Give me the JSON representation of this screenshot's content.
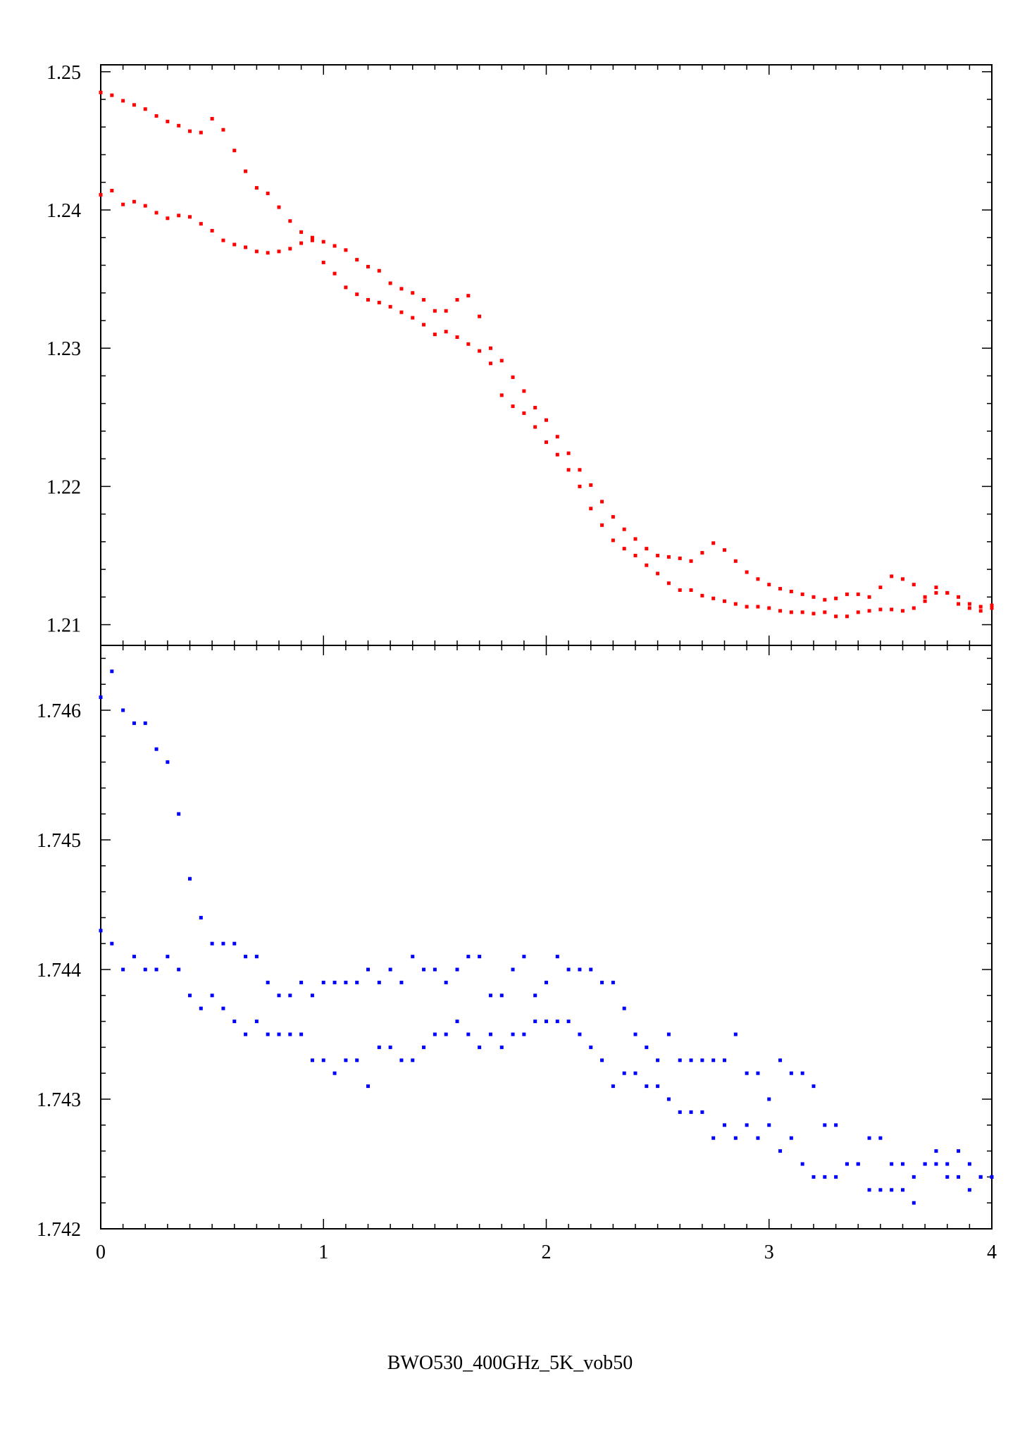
{
  "caption": "BWO530_400GHz_5K_vob50",
  "colors": {
    "top_series": "#ff0000",
    "bottom_series": "#0000ff",
    "axes": "#000000",
    "background": "#ffffff"
  },
  "chart_data": [
    {
      "type": "scatter",
      "title": "",
      "xlabel": "",
      "ylabel": "",
      "xlim": [
        0,
        4
      ],
      "ylim": [
        1.2085,
        1.2505
      ],
      "grid": false,
      "x_ticks": [
        {
          "value": 0,
          "label": "0"
        },
        {
          "value": 1,
          "label": "1"
        },
        {
          "value": 2,
          "label": "2"
        },
        {
          "value": 3,
          "label": "3"
        },
        {
          "value": 4,
          "label": "4"
        }
      ],
      "y_ticks": [
        {
          "value": 1.21,
          "label": "1.21"
        },
        {
          "value": 1.22,
          "label": "1.22"
        },
        {
          "value": 1.23,
          "label": "1.23"
        },
        {
          "value": 1.24,
          "label": "1.24"
        },
        {
          "value": 1.25,
          "label": "1.25"
        }
      ],
      "series": [
        {
          "color": "#ff0000",
          "x": [
            0,
            0.05,
            0.1,
            0.15,
            0.2,
            0.25,
            0.3,
            0.35,
            0.4,
            0.45,
            0.5,
            0.55,
            0.6,
            0.65,
            0.7,
            0.75,
            0.8,
            0.85,
            0.9,
            0.95,
            1.0,
            1.05,
            1.1,
            1.15,
            1.2,
            1.25,
            1.3,
            1.35,
            1.4,
            1.45,
            1.5,
            1.55,
            1.6,
            1.65,
            1.7,
            1.75,
            1.8,
            1.85,
            1.9,
            1.95,
            2.0,
            2.05,
            2.1,
            2.15,
            2.2,
            2.25,
            2.3,
            2.35,
            2.4,
            2.45,
            2.5,
            2.55,
            2.6,
            2.65,
            2.7,
            2.75,
            2.8,
            2.85,
            2.9,
            2.95,
            3.0,
            3.05,
            3.1,
            3.15,
            3.2,
            3.25,
            3.3,
            3.35,
            3.4,
            3.45,
            3.5,
            3.55,
            3.6,
            3.65,
            3.7,
            3.75,
            3.8,
            3.85,
            3.9,
            3.95,
            4.0
          ],
          "y": [
            1.2485,
            1.2483,
            1.2479,
            1.2476,
            1.2473,
            1.2468,
            1.2464,
            1.2461,
            1.2457,
            1.2456,
            1.2466,
            1.2458,
            1.2443,
            1.2428,
            1.2416,
            1.2412,
            1.2402,
            1.2392,
            1.2384,
            1.238,
            1.2377,
            1.2374,
            1.2371,
            1.2364,
            1.2359,
            1.2356,
            1.2347,
            1.2343,
            1.234,
            1.2335,
            1.2327,
            1.2327,
            1.2335,
            1.2338,
            1.2323,
            1.23,
            1.2291,
            1.2279,
            1.2269,
            1.2257,
            1.2248,
            1.2236,
            1.2224,
            1.2212,
            1.2201,
            1.2189,
            1.2178,
            1.2169,
            1.2162,
            1.2155,
            1.215,
            1.2149,
            1.2148,
            1.2146,
            1.2152,
            1.2159,
            1.2154,
            1.2146,
            1.2138,
            1.2133,
            1.2129,
            1.2126,
            1.2124,
            1.2122,
            1.212,
            1.2118,
            1.2119,
            1.2122,
            1.2122,
            1.212,
            1.2127,
            1.2135,
            1.2133,
            1.2129,
            1.212,
            1.2127,
            1.2123,
            1.2115,
            1.2115,
            1.2113,
            1.2114
          ]
        },
        {
          "color": "#ff0000",
          "x": [
            0,
            0.05,
            0.1,
            0.15,
            0.2,
            0.25,
            0.3,
            0.35,
            0.4,
            0.45,
            0.5,
            0.55,
            0.6,
            0.65,
            0.7,
            0.75,
            0.8,
            0.85,
            0.9,
            0.95,
            1.0,
            1.05,
            1.1,
            1.15,
            1.2,
            1.25,
            1.3,
            1.35,
            1.4,
            1.45,
            1.5,
            1.55,
            1.6,
            1.65,
            1.7,
            1.75,
            1.8,
            1.85,
            1.9,
            1.95,
            2.0,
            2.05,
            2.1,
            2.15,
            2.2,
            2.25,
            2.3,
            2.35,
            2.4,
            2.45,
            2.5,
            2.55,
            2.6,
            2.65,
            2.7,
            2.75,
            2.8,
            2.85,
            2.9,
            2.95,
            3.0,
            3.05,
            3.1,
            3.15,
            3.2,
            3.25,
            3.3,
            3.35,
            3.4,
            3.45,
            3.5,
            3.55,
            3.6,
            3.65,
            3.7,
            3.75,
            3.8,
            3.85,
            3.9,
            3.95,
            4.0
          ],
          "y": [
            1.2411,
            1.2414,
            1.2404,
            1.2406,
            1.2403,
            1.2398,
            1.2394,
            1.2396,
            1.2395,
            1.239,
            1.2385,
            1.2378,
            1.2375,
            1.2373,
            1.237,
            1.2369,
            1.237,
            1.2372,
            1.2376,
            1.2378,
            1.2362,
            1.2354,
            1.2344,
            1.2339,
            1.2335,
            1.2333,
            1.233,
            1.2326,
            1.2322,
            1.2317,
            1.231,
            1.2312,
            1.2308,
            1.2303,
            1.2298,
            1.2289,
            1.2266,
            1.2258,
            1.2253,
            1.2243,
            1.2232,
            1.2223,
            1.2212,
            1.22,
            1.2184,
            1.2172,
            1.2161,
            1.2155,
            1.215,
            1.2143,
            1.2137,
            1.213,
            1.2125,
            1.2125,
            1.2121,
            1.2119,
            1.2117,
            1.2115,
            1.2113,
            1.2113,
            1.2112,
            1.211,
            1.2109,
            1.2109,
            1.2108,
            1.2109,
            1.2106,
            1.2106,
            1.2109,
            1.211,
            1.2111,
            1.2111,
            1.211,
            1.2112,
            1.2117,
            1.2123,
            1.2123,
            1.212,
            1.2112,
            1.211,
            1.2112
          ]
        }
      ]
    },
    {
      "type": "scatter",
      "title": "",
      "xlabel": "",
      "ylabel": "",
      "xlim": [
        0,
        4
      ],
      "ylim": [
        1.742,
        1.7465
      ],
      "grid": false,
      "x_ticks": [
        {
          "value": 0,
          "label": "0"
        },
        {
          "value": 1,
          "label": "1"
        },
        {
          "value": 2,
          "label": "2"
        },
        {
          "value": 3,
          "label": "3"
        },
        {
          "value": 4,
          "label": "4"
        }
      ],
      "y_ticks": [
        {
          "value": 1.742,
          "label": "1.742"
        },
        {
          "value": 1.743,
          "label": "1.743"
        },
        {
          "value": 1.744,
          "label": "1.744"
        },
        {
          "value": 1.745,
          "label": "1.745"
        },
        {
          "value": 1.746,
          "label": "1.746"
        }
      ],
      "series": [
        {
          "color": "#0000ff",
          "x": [
            0,
            0.05,
            0.1,
            0.15,
            0.2,
            0.25,
            0.3,
            0.35,
            0.4,
            0.45,
            0.5,
            0.55,
            0.6,
            0.65,
            0.7,
            0.75,
            0.8,
            0.85,
            0.9,
            0.95,
            1.0,
            1.05,
            1.1,
            1.15,
            1.2,
            1.25,
            1.3,
            1.35,
            1.4,
            1.45,
            1.5,
            1.55,
            1.6,
            1.65,
            1.7,
            1.75,
            1.8,
            1.85,
            1.9,
            1.95,
            2.0,
            2.05,
            2.1,
            2.15,
            2.2,
            2.25,
            2.3,
            2.35,
            2.4,
            2.45,
            2.5,
            2.55,
            2.6,
            2.65,
            2.7,
            2.75,
            2.8,
            2.85,
            2.9,
            2.95,
            3.0,
            3.05,
            3.1,
            3.15,
            3.2,
            3.25,
            3.3,
            3.35,
            3.4,
            3.45,
            3.5,
            3.55,
            3.6,
            3.65,
            3.7,
            3.75,
            3.8,
            3.85,
            3.9,
            3.95,
            4.0
          ],
          "y": [
            1.7461,
            1.7463,
            1.746,
            1.7459,
            1.7459,
            1.7457,
            1.7456,
            1.7452,
            1.7447,
            1.7444,
            1.7442,
            1.7442,
            1.7442,
            1.7441,
            1.7441,
            1.7439,
            1.7438,
            1.7438,
            1.7439,
            1.7438,
            1.7439,
            1.7439,
            1.7439,
            1.7439,
            1.744,
            1.7439,
            1.744,
            1.7439,
            1.7441,
            1.744,
            1.744,
            1.7439,
            1.744,
            1.7441,
            1.7441,
            1.7438,
            1.7438,
            1.744,
            1.7441,
            1.7438,
            1.7439,
            1.7441,
            1.744,
            1.744,
            1.744,
            1.7439,
            1.7439,
            1.7437,
            1.7435,
            1.7434,
            1.7433,
            1.7435,
            1.7433,
            1.7433,
            1.7433,
            1.7433,
            1.7433,
            1.7435,
            1.7432,
            1.7432,
            1.743,
            1.7433,
            1.7432,
            1.7432,
            1.7431,
            1.7428,
            1.7428,
            1.7425,
            1.7425,
            1.7427,
            1.7427,
            1.7425,
            1.7425,
            1.7424,
            1.7425,
            1.7426,
            1.7425,
            1.7426,
            1.7425,
            1.7424,
            1.7424
          ]
        },
        {
          "color": "#0000ff",
          "x": [
            0,
            0.05,
            0.1,
            0.15,
            0.2,
            0.25,
            0.3,
            0.35,
            0.4,
            0.45,
            0.5,
            0.55,
            0.6,
            0.65,
            0.7,
            0.75,
            0.8,
            0.85,
            0.9,
            0.95,
            1.0,
            1.05,
            1.1,
            1.15,
            1.2,
            1.25,
            1.3,
            1.35,
            1.4,
            1.45,
            1.5,
            1.55,
            1.6,
            1.65,
            1.7,
            1.75,
            1.8,
            1.85,
            1.9,
            1.95,
            2.0,
            2.05,
            2.1,
            2.15,
            2.2,
            2.25,
            2.3,
            2.35,
            2.4,
            2.45,
            2.5,
            2.55,
            2.6,
            2.65,
            2.7,
            2.75,
            2.8,
            2.85,
            2.9,
            2.95,
            3.0,
            3.05,
            3.1,
            3.15,
            3.2,
            3.25,
            3.3,
            3.35,
            3.4,
            3.45,
            3.5,
            3.55,
            3.6,
            3.65,
            3.7,
            3.75,
            3.8,
            3.85,
            3.9,
            3.95,
            4.0
          ],
          "y": [
            1.7443,
            1.7442,
            1.744,
            1.7441,
            1.744,
            1.744,
            1.7441,
            1.744,
            1.7438,
            1.7437,
            1.7438,
            1.7437,
            1.7436,
            1.7435,
            1.7436,
            1.7435,
            1.7435,
            1.7435,
            1.7435,
            1.7433,
            1.7433,
            1.7432,
            1.7433,
            1.7433,
            1.7431,
            1.7434,
            1.7434,
            1.7433,
            1.7433,
            1.7434,
            1.7435,
            1.7435,
            1.7436,
            1.7435,
            1.7434,
            1.7435,
            1.7434,
            1.7435,
            1.7435,
            1.7436,
            1.7436,
            1.7436,
            1.7436,
            1.7435,
            1.7434,
            1.7433,
            1.7431,
            1.7432,
            1.7432,
            1.7431,
            1.7431,
            1.743,
            1.7429,
            1.7429,
            1.7429,
            1.7427,
            1.7428,
            1.7427,
            1.7428,
            1.7427,
            1.7428,
            1.7426,
            1.7427,
            1.7425,
            1.7424,
            1.7424,
            1.7424,
            1.7425,
            1.7425,
            1.7423,
            1.7423,
            1.7423,
            1.7423,
            1.7422,
            1.7425,
            1.7425,
            1.7424,
            1.7424,
            1.7423,
            1.7424,
            1.7424
          ]
        }
      ]
    }
  ]
}
